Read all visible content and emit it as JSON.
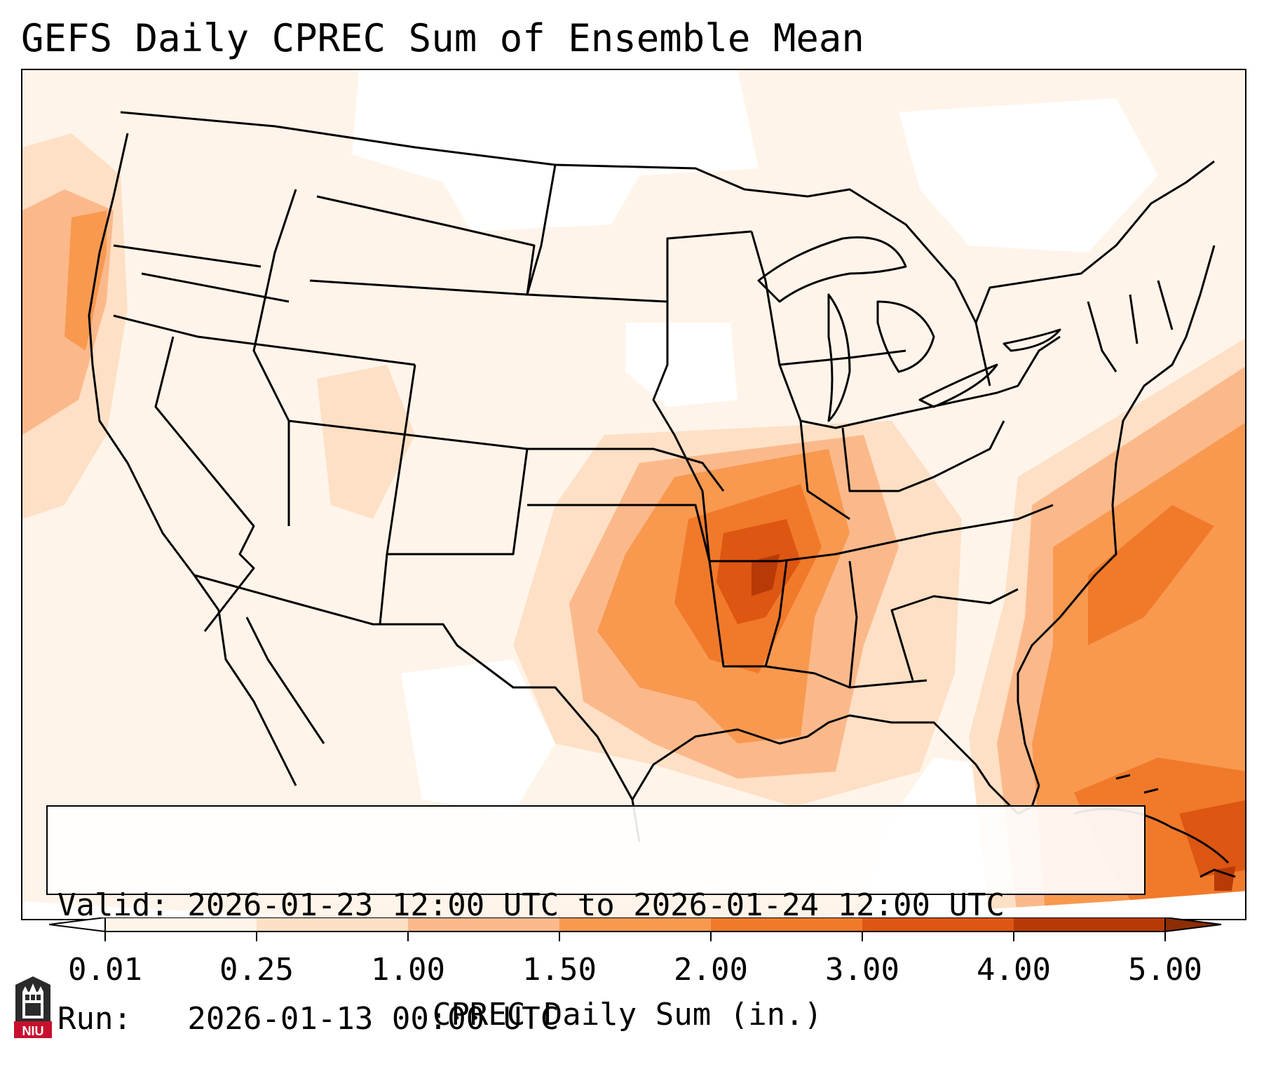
{
  "title": "GEFS Daily CPREC Sum of Ensemble Mean",
  "info": {
    "valid": "Valid: 2026-01-23 12:00 UTC to 2026-01-24 12:00 UTC",
    "run": "Run:   2026-01-13 00:00 UTC"
  },
  "colorbar": {
    "label": "CPREC Daily Sum (in.)",
    "ticks": [
      "0.01",
      "0.25",
      "1.00",
      "1.50",
      "2.00",
      "3.00",
      "4.00",
      "5.00"
    ],
    "colors": [
      "#fff4ea",
      "#fde0c5",
      "#fbb98b",
      "#f8994f",
      "#f17a2a",
      "#dd5612",
      "#b73a07"
    ],
    "under_color": "#ffffff",
    "over_color": "#8c2d04"
  },
  "map": {
    "projection": "Lambert Conformal (CONUS)",
    "variable": "CPREC ensemble mean daily sum",
    "max_region": "Lower Mississippi Valley / Gulf Coast",
    "secondary_region": "Western Atlantic offshore of Southeast US"
  },
  "logo": {
    "text": "NIU"
  }
}
